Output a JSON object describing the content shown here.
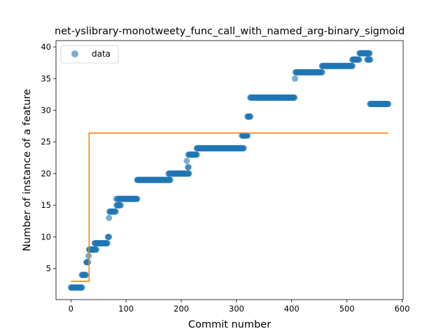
{
  "chart_data": {
    "type": "scatter",
    "title": "net-yslibrary-monotweety_func_call_with_named_arg-binary_sigmoid",
    "xlabel": "Commit number",
    "ylabel": "Number of instance of a feature",
    "xlim": [
      -27,
      602
    ],
    "ylim": [
      0.1,
      41.0
    ],
    "xticks": [
      0,
      100,
      200,
      300,
      400,
      500,
      600
    ],
    "yticks": [
      5,
      10,
      15,
      20,
      25,
      30,
      35,
      40
    ],
    "grid": false,
    "legend": {
      "position": "top-left",
      "entries": [
        "data"
      ]
    },
    "colors": {
      "data": "#1f77b4",
      "fit": "#ff7f0e"
    },
    "series": [
      {
        "name": "data",
        "kind": "scatter",
        "runs": [
          [
            0,
            20,
            2
          ],
          [
            20,
            27,
            4
          ],
          [
            28,
            31,
            6
          ],
          [
            32,
            32,
            7
          ],
          [
            33,
            34,
            8
          ],
          [
            35,
            46,
            8
          ],
          [
            43,
            66,
            9
          ],
          [
            67,
            69,
            10
          ],
          [
            69,
            69,
            13
          ],
          [
            70,
            81,
            14
          ],
          [
            82,
            82,
            16
          ],
          [
            83,
            90,
            15
          ],
          [
            85,
            120,
            16
          ],
          [
            120,
            180,
            19
          ],
          [
            177,
            214,
            20
          ],
          [
            210,
            210,
            22
          ],
          [
            212,
            213,
            21
          ],
          [
            213,
            228,
            23
          ],
          [
            228,
            313,
            24
          ],
          [
            310,
            320,
            26
          ],
          [
            320,
            325,
            29
          ],
          [
            325,
            405,
            32
          ],
          [
            406,
            406,
            35
          ],
          [
            407,
            455,
            36
          ],
          [
            455,
            510,
            37
          ],
          [
            510,
            522,
            38
          ],
          [
            523,
            541,
            39
          ],
          [
            537,
            542,
            38
          ],
          [
            542,
            575,
            31
          ]
        ]
      },
      {
        "name": "",
        "kind": "step",
        "x": [
          0,
          33,
          33,
          575
        ],
        "y": [
          3,
          3,
          26.4,
          26.4
        ]
      }
    ]
  }
}
